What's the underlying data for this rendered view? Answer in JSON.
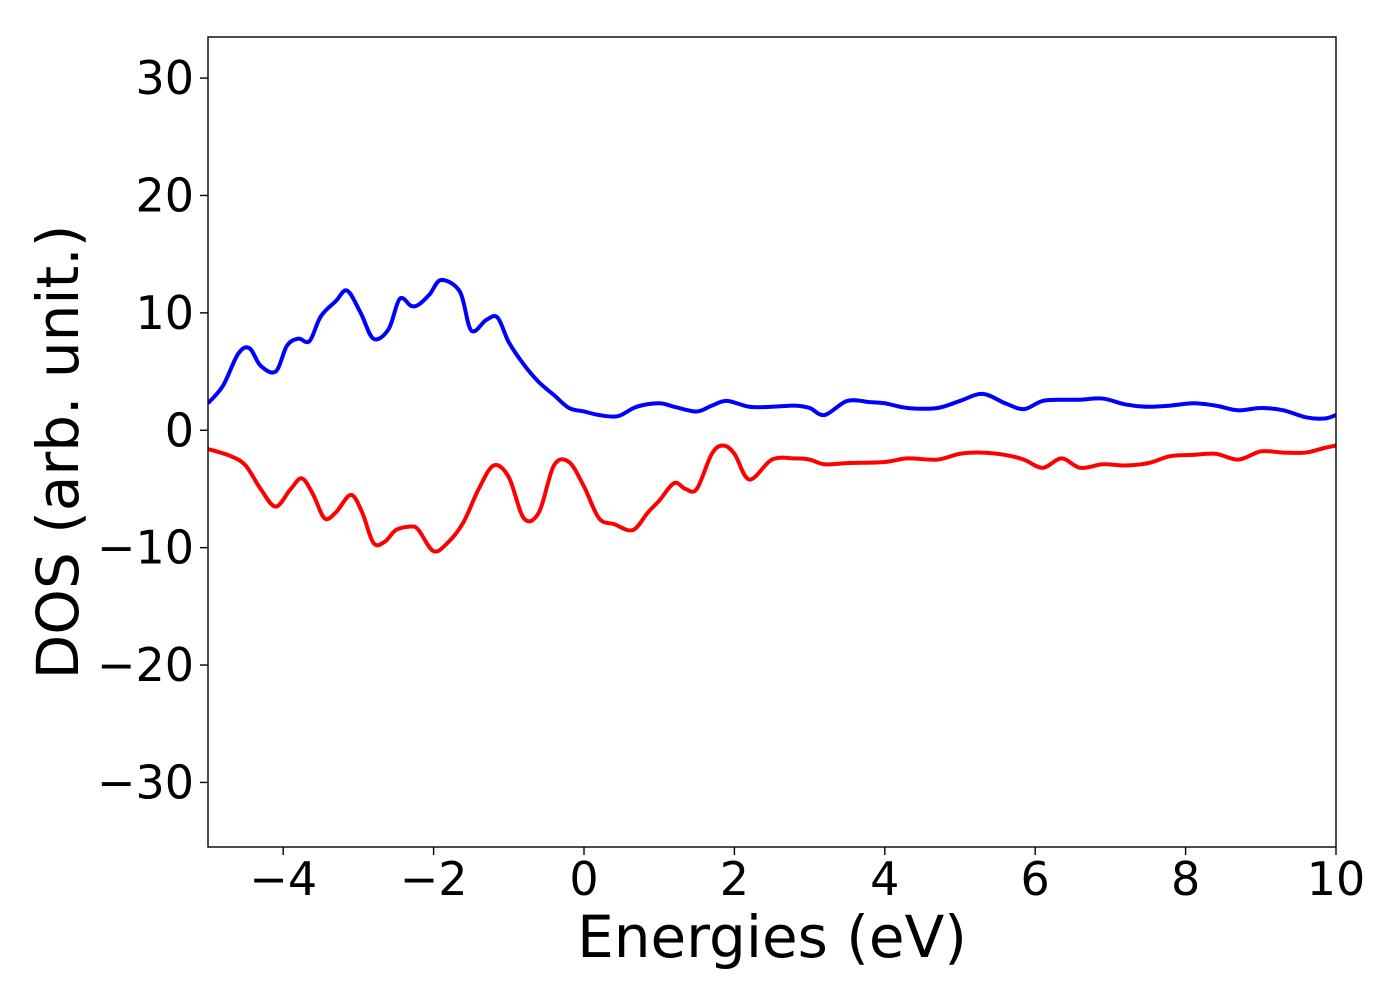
{
  "chart_data": {
    "type": "line",
    "xlabel": "Energies (eV)",
    "ylabel": "DOS (arb. unit.)",
    "xlim": [
      -5,
      10
    ],
    "ylim": [
      -35.5,
      33.5
    ],
    "xticks": [
      -4,
      -2,
      0,
      2,
      4,
      6,
      8,
      10
    ],
    "xtick_labels": [
      "−4",
      "−2",
      "0",
      "2",
      "4",
      "6",
      "8",
      "10"
    ],
    "yticks": [
      -30,
      -20,
      -10,
      0,
      10,
      20,
      30
    ],
    "ytick_labels": [
      "−30",
      "−20",
      "−10",
      "0",
      "10",
      "20",
      "30"
    ],
    "grid": false,
    "series": [
      {
        "color": "#0000ff",
        "x": [
          -5.0,
          -4.8,
          -4.6,
          -4.45,
          -4.3,
          -4.1,
          -3.95,
          -3.8,
          -3.65,
          -3.5,
          -3.3,
          -3.15,
          -2.97,
          -2.8,
          -2.6,
          -2.45,
          -2.3,
          -2.2,
          -2.05,
          -1.9,
          -1.65,
          -1.5,
          -1.3,
          -1.15,
          -1.0,
          -0.8,
          -0.6,
          -0.4,
          -0.2,
          0.0,
          0.2,
          0.45,
          0.7,
          1.0,
          1.2,
          1.5,
          1.7,
          1.9,
          2.2,
          2.5,
          2.8,
          3.0,
          3.2,
          3.5,
          3.8,
          4.0,
          4.3,
          4.7,
          5.0,
          5.3,
          5.6,
          5.85,
          6.1,
          6.4,
          6.6,
          6.9,
          7.2,
          7.5,
          7.8,
          8.1,
          8.4,
          8.7,
          9.0,
          9.3,
          9.6,
          9.85,
          10.0
        ],
        "y": [
          2.3,
          3.8,
          6.5,
          7.0,
          5.5,
          5.0,
          7.2,
          7.8,
          7.6,
          9.7,
          11.0,
          11.9,
          10.0,
          7.8,
          8.6,
          11.2,
          10.6,
          10.7,
          11.6,
          12.8,
          11.8,
          8.5,
          9.4,
          9.6,
          7.5,
          5.6,
          4.1,
          3.0,
          1.9,
          1.6,
          1.3,
          1.2,
          2.0,
          2.3,
          2.0,
          1.6,
          2.1,
          2.5,
          2.0,
          2.0,
          2.1,
          1.9,
          1.3,
          2.5,
          2.4,
          2.3,
          1.9,
          1.9,
          2.5,
          3.1,
          2.3,
          1.8,
          2.5,
          2.6,
          2.6,
          2.7,
          2.2,
          2.0,
          2.1,
          2.3,
          2.1,
          1.7,
          1.9,
          1.7,
          1.1,
          1.0,
          1.3
        ]
      },
      {
        "color": "#ff0000",
        "x": [
          -5.0,
          -4.7,
          -4.5,
          -4.3,
          -4.1,
          -3.9,
          -3.75,
          -3.6,
          -3.45,
          -3.3,
          -3.1,
          -2.95,
          -2.8,
          -2.65,
          -2.5,
          -2.3,
          -2.2,
          -2.0,
          -1.8,
          -1.6,
          -1.4,
          -1.2,
          -1.0,
          -0.8,
          -0.6,
          -0.4,
          -0.2,
          0.0,
          0.2,
          0.4,
          0.65,
          0.85,
          1.0,
          1.2,
          1.35,
          1.5,
          1.7,
          1.85,
          2.0,
          2.2,
          2.5,
          2.8,
          3.0,
          3.2,
          3.5,
          4.0,
          4.3,
          4.7,
          5.0,
          5.3,
          5.6,
          5.85,
          6.1,
          6.35,
          6.6,
          6.9,
          7.2,
          7.5,
          7.8,
          8.1,
          8.4,
          8.7,
          9.0,
          9.3,
          9.6,
          9.85,
          10.0
        ],
        "y": [
          -1.6,
          -2.2,
          -3.0,
          -5.0,
          -6.5,
          -5.0,
          -4.1,
          -5.5,
          -7.5,
          -7.0,
          -5.5,
          -7.0,
          -9.6,
          -9.5,
          -8.5,
          -8.2,
          -8.5,
          -10.3,
          -9.5,
          -7.8,
          -5.0,
          -3.0,
          -4.0,
          -7.5,
          -7.0,
          -3.0,
          -2.7,
          -4.8,
          -7.5,
          -8.0,
          -8.5,
          -7.0,
          -6.0,
          -4.5,
          -5.0,
          -5.0,
          -2.0,
          -1.3,
          -2.0,
          -4.2,
          -2.5,
          -2.4,
          -2.5,
          -2.9,
          -2.8,
          -2.7,
          -2.4,
          -2.5,
          -2.0,
          -1.9,
          -2.1,
          -2.5,
          -3.2,
          -2.4,
          -3.2,
          -2.9,
          -3.0,
          -2.8,
          -2.2,
          -2.1,
          -2.0,
          -2.5,
          -1.8,
          -1.9,
          -1.9,
          -1.5,
          -1.3
        ]
      }
    ]
  }
}
